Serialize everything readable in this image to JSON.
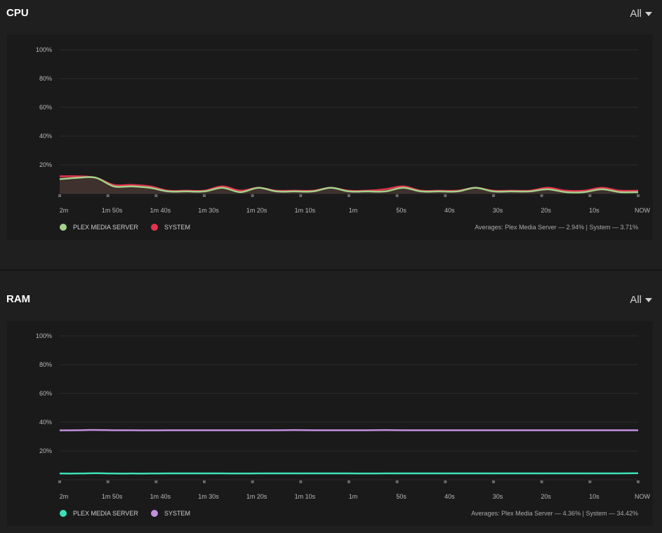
{
  "cpu": {
    "title": "CPU",
    "filter": "All",
    "legend": [
      {
        "name": "PLEX MEDIA SERVER",
        "color": "#a3d18a"
      },
      {
        "name": "SYSTEM",
        "color": "#e5334f"
      }
    ],
    "averages": "Averages: Plex Media Server — 2.94% | System — 3.71%",
    "chart_data": {
      "type": "area",
      "yticks": [
        "20%",
        "40%",
        "60%",
        "80%",
        "100%"
      ],
      "xticks": [
        "2m",
        "1m 50s",
        "1m 40s",
        "1m 30s",
        "1m 20s",
        "1m 10s",
        "1m",
        "50s",
        "40s",
        "30s",
        "20s",
        "10s",
        "NOW"
      ],
      "ylim": [
        0,
        100
      ],
      "series": [
        {
          "name": "SYSTEM",
          "color": "#e5334f",
          "values": [
            12,
            12,
            11,
            6,
            6,
            5,
            2,
            2,
            2,
            5,
            2,
            4,
            2,
            2,
            2,
            4,
            2,
            2,
            3,
            5,
            2,
            2,
            2,
            4,
            2,
            2,
            2,
            4,
            2,
            2,
            4,
            2,
            2
          ]
        },
        {
          "name": "PLEX MEDIA SERVER",
          "color": "#a3d18a",
          "values": [
            10,
            11,
            11,
            5,
            5,
            4,
            1.5,
            1.5,
            1.5,
            4,
            1,
            4,
            1.5,
            1.5,
            1.5,
            4,
            1.5,
            1.5,
            1.5,
            4,
            1.5,
            1.5,
            1.5,
            4,
            1.5,
            1.5,
            1.5,
            3,
            1,
            1,
            3,
            1,
            1
          ]
        }
      ]
    }
  },
  "ram": {
    "title": "RAM",
    "filter": "All",
    "legend": [
      {
        "name": "PLEX MEDIA SERVER",
        "color": "#3ce0b8"
      },
      {
        "name": "SYSTEM",
        "color": "#c190e0"
      }
    ],
    "averages": "Averages: Plex Media Server — 4.36% | System — 34.42%",
    "chart_data": {
      "type": "line",
      "yticks": [
        "20%",
        "40%",
        "60%",
        "80%",
        "100%"
      ],
      "xticks": [
        "2m",
        "1m 50s",
        "1m 40s",
        "1m 30s",
        "1m 20s",
        "1m 10s",
        "1m",
        "50s",
        "40s",
        "30s",
        "20s",
        "10s",
        "NOW"
      ],
      "ylim": [
        0,
        100
      ],
      "series": [
        {
          "name": "SYSTEM",
          "color": "#c190e0",
          "values": [
            34.3,
            34.4,
            34.6,
            34.4,
            34.4,
            34.3,
            34.4,
            34.4,
            34.4,
            34.4,
            34.4,
            34.4,
            34.4,
            34.5,
            34.4,
            34.4,
            34.4,
            34.4,
            34.5,
            34.4,
            34.4,
            34.4,
            34.4,
            34.4,
            34.4,
            34.4,
            34.4,
            34.4,
            34.4,
            34.4,
            34.4,
            34.4,
            34.4
          ]
        },
        {
          "name": "PLEX MEDIA SERVER",
          "color": "#3ce0b8",
          "values": [
            4.3,
            4.3,
            4.5,
            4.3,
            4.3,
            4.3,
            4.4,
            4.4,
            4.4,
            4.4,
            4.3,
            4.4,
            4.4,
            4.4,
            4.4,
            4.4,
            4.4,
            4.3,
            4.4,
            4.4,
            4.4,
            4.4,
            4.4,
            4.4,
            4.4,
            4.4,
            4.4,
            4.4,
            4.4,
            4.4,
            4.4,
            4.4,
            4.5
          ]
        }
      ]
    }
  }
}
